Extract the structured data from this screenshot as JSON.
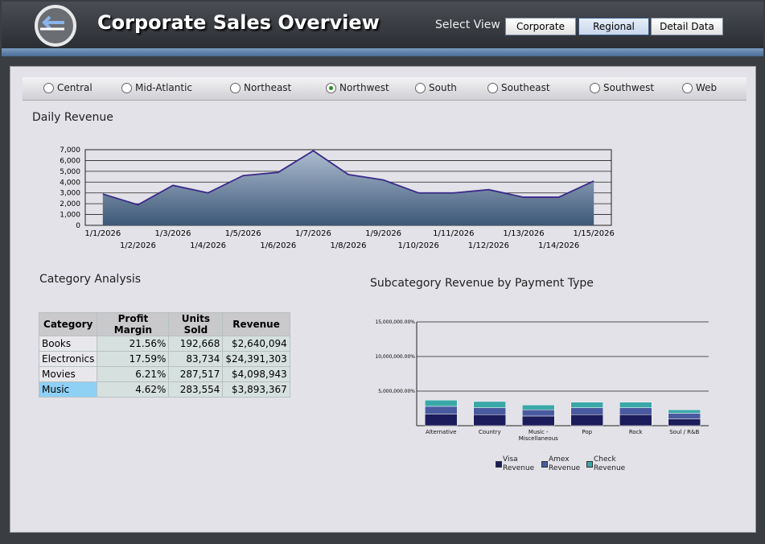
{
  "header": {
    "title": "Corporate Sales Overview",
    "select_view_label": "Select View",
    "buttons": [
      "Corporate",
      "Regional",
      "Detail Data"
    ],
    "active_button": 1
  },
  "region_filter": {
    "options": [
      "Central",
      "Mid-Atlantic",
      "Northeast",
      "Northwest",
      "South",
      "Southeast",
      "Southwest",
      "Web"
    ],
    "selected": 3
  },
  "table": {
    "title": "Category Analysis",
    "columns": [
      "Category",
      "Profit Margin",
      "Units Sold",
      "Revenue"
    ],
    "rows": [
      [
        "Books",
        "21.56%",
        "192,668",
        "$2,640,094"
      ],
      [
        "Electronics",
        "17.59%",
        "83,734",
        "$24,391,303"
      ],
      [
        "Movies",
        "6.21%",
        "287,517",
        "$4,098,943"
      ],
      [
        "Music",
        "4.62%",
        "283,554",
        "$3,893,367"
      ]
    ],
    "selected_row": 3
  },
  "chart_data": [
    {
      "type": "area",
      "title": "Daily Revenue",
      "categories": [
        "1/1/2026",
        "1/2/2026",
        "1/3/2026",
        "1/4/2026",
        "1/5/2026",
        "1/6/2026",
        "1/7/2026",
        "1/8/2026",
        "1/9/2026",
        "1/10/2026",
        "1/11/2026",
        "1/12/2026",
        "1/13/2026",
        "1/14/2026",
        "1/15/2026"
      ],
      "values": [
        2900,
        1900,
        3700,
        3000,
        4600,
        4900,
        6900,
        4700,
        4200,
        3000,
        3000,
        3300,
        2600,
        2600,
        4100
      ],
      "color": "#3d5878",
      "line_color": "#3a2a8a",
      "ylim": [
        0,
        7000
      ],
      "yticks": [
        0,
        {
          "value": 1000,
          "label": "1,000"
        },
        {
          "value": 2000,
          "label": "2,000"
        },
        {
          "value": 3000,
          "label": "3,000"
        },
        {
          "value": 4000,
          "label": "4,000"
        },
        {
          "value": 5000,
          "label": "5,000"
        },
        {
          "value": 6000,
          "label": "6,000"
        },
        {
          "value": 7000,
          "label": "7,000"
        }
      ],
      "grid": true
    },
    {
      "type": "stacked_bar",
      "title": "Subcategory Revenue by Payment Type",
      "categories": [
        "Alternative",
        "Country",
        "Music - Miscellaneous",
        "Pop",
        "Rock",
        "Soul / R&B"
      ],
      "series": [
        {
          "name": "Visa Revenue",
          "color": "#1c1c5c",
          "values": [
            1700000,
            1600000,
            1400000,
            1600000,
            1600000,
            1000000
          ]
        },
        {
          "name": "Amex Revenue",
          "color": "#4a5aa0",
          "values": [
            1100000,
            1000000,
            900000,
            1000000,
            1000000,
            800000
          ]
        },
        {
          "name": "Check Revenue",
          "color": "#3aa8a8",
          "values": [
            900000,
            900000,
            700000,
            800000,
            800000,
            500000
          ]
        }
      ],
      "ylim": [
        0,
        15000000
      ],
      "yticks": [
        {
          "value": 5000000,
          "label": "5,000,000.00%"
        },
        {
          "value": 10000000,
          "label": "10,000,000.00%"
        },
        {
          "value": 15000000,
          "label": "15,000,000.00%"
        }
      ],
      "grid": true,
      "legend": "bottom"
    }
  ]
}
